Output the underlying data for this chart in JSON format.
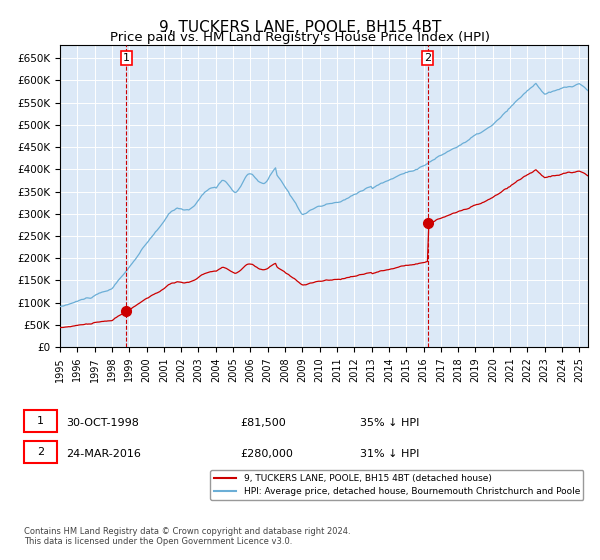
{
  "title": "9, TUCKERS LANE, POOLE, BH15 4BT",
  "subtitle": "Price paid vs. HM Land Registry's House Price Index (HPI)",
  "title_fontsize": 11,
  "subtitle_fontsize": 9.5,
  "ylim": [
    0,
    680000
  ],
  "yticks": [
    0,
    50000,
    100000,
    150000,
    200000,
    250000,
    300000,
    350000,
    400000,
    450000,
    500000,
    550000,
    600000,
    650000
  ],
  "background_color": "#dce9f7",
  "hpi_color": "#6baed6",
  "price_color": "#cc0000",
  "purchase1": {
    "date_num": 1998.83,
    "price": 81500,
    "label": "1"
  },
  "purchase2": {
    "date_num": 2016.23,
    "price": 280000,
    "label": "2"
  },
  "vline_color": "#cc0000",
  "legend1": "9, TUCKERS LANE, POOLE, BH15 4BT (detached house)",
  "legend2": "HPI: Average price, detached house, Bournemouth Christchurch and Poole",
  "table_row1": [
    "1",
    "30-OCT-1998",
    "£81,500",
    "35% ↓ HPI"
  ],
  "table_row2": [
    "2",
    "24-MAR-2016",
    "£280,000",
    "31% ↓ HPI"
  ],
  "footnote": "Contains HM Land Registry data © Crown copyright and database right 2024.\nThis data is licensed under the Open Government Licence v3.0.",
  "xmin": 1995.0,
  "xmax": 2025.5
}
